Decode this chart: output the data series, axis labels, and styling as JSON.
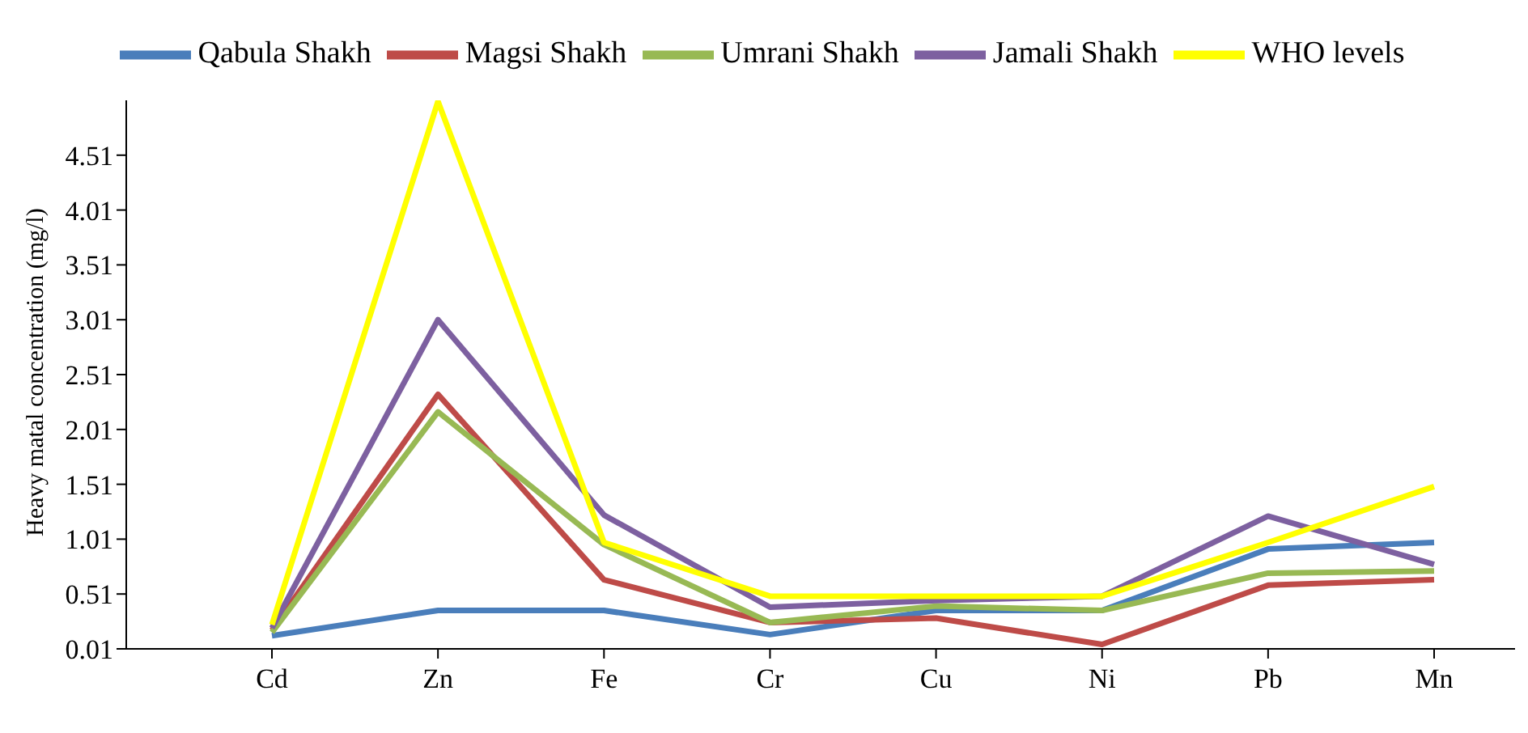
{
  "chart_data": {
    "type": "line",
    "ylabel": "Heavy matal concentration (mg/l)",
    "categories": [
      "Cd",
      "Zn",
      "Fe",
      "Cr",
      "Cu",
      "Ni",
      "Pb",
      "Mn"
    ],
    "series": [
      {
        "name": "Qabula Shakh",
        "color": "#4a7ebb",
        "values": [
          0.13,
          0.36,
          0.36,
          0.14,
          0.36,
          0.36,
          0.92,
          0.98
        ]
      },
      {
        "name": "Magsi Shakh",
        "color": "#be4b48",
        "values": [
          0.18,
          2.33,
          0.64,
          0.25,
          0.29,
          0.05,
          0.59,
          0.64
        ]
      },
      {
        "name": "Umrani Shakh",
        "color": "#98b954",
        "values": [
          0.16,
          2.17,
          0.96,
          0.25,
          0.4,
          0.36,
          0.7,
          0.72
        ]
      },
      {
        "name": "Jamali Shakh",
        "color": "#7d60a0",
        "values": [
          0.2,
          3.01,
          1.23,
          0.39,
          0.45,
          0.49,
          1.22,
          0.78
        ]
      },
      {
        "name": "WHO levels",
        "color": "#ffff00",
        "values": [
          0.23,
          5.0,
          0.98,
          0.49,
          0.49,
          0.49,
          0.98,
          1.49
        ]
      }
    ],
    "ylim": [
      0.01,
      5.01
    ],
    "yticks": [
      0.01,
      0.51,
      1.01,
      1.51,
      2.01,
      2.51,
      3.01,
      3.51,
      4.01,
      4.51
    ],
    "grid": false,
    "legend": "top",
    "marker": "none",
    "line_style": "solid"
  }
}
